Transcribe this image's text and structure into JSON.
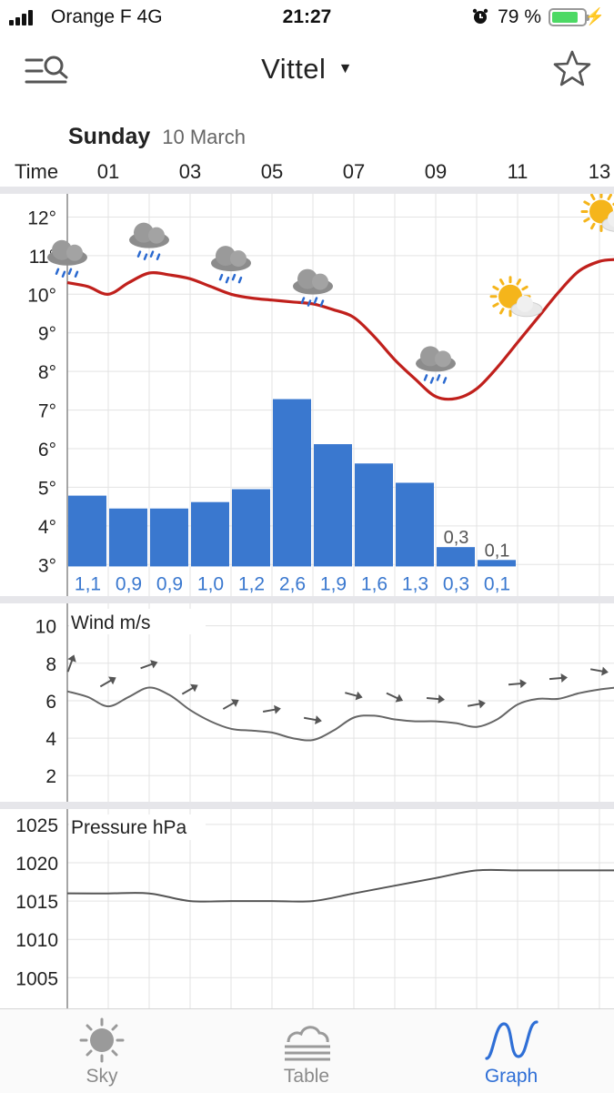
{
  "status_bar": {
    "carrier": "Orange F   4G",
    "time": "21:27",
    "battery": "79 %",
    "battery_level": 0.79
  },
  "nav": {
    "title": "Vittel",
    "menu_icon": "search-list-icon",
    "favorite_icon": "star-icon"
  },
  "day_header": {
    "day": "Sunday",
    "date": "10 March"
  },
  "time_axis": {
    "label": "Time",
    "ticks": [
      "01",
      "03",
      "05",
      "07",
      "09",
      "11",
      "13"
    ]
  },
  "chart_data": [
    {
      "type": "line",
      "name": "temperature",
      "x": [
        0.0,
        0.5,
        1.0,
        1.5,
        2.0,
        2.5,
        3.0,
        3.5,
        4.0,
        4.5,
        5.0,
        5.5,
        6.0,
        6.5,
        7.0,
        7.5,
        8.0,
        8.5,
        9.0,
        9.5,
        10.0,
        10.5,
        11.0,
        11.5,
        12.0,
        12.5,
        13.0,
        13.4
      ],
      "values": [
        10.3,
        10.2,
        10.0,
        10.3,
        10.55,
        10.5,
        10.4,
        10.2,
        10.0,
        9.9,
        9.85,
        9.8,
        9.75,
        9.6,
        9.4,
        8.9,
        8.3,
        7.8,
        7.35,
        7.3,
        7.55,
        8.1,
        8.75,
        9.4,
        10.05,
        10.6,
        10.85,
        10.9
      ],
      "ylim": [
        2.7,
        12.6
      ],
      "yticks": [
        "12°",
        "11°",
        "10°",
        "9°",
        "8°",
        "7°",
        "6°",
        "5°",
        "4°",
        "3°"
      ],
      "ytick_values": [
        12,
        11,
        10,
        9,
        8,
        7,
        6,
        5,
        4,
        3
      ],
      "color": "#c0201c"
    },
    {
      "type": "bar",
      "name": "precipitation",
      "x": [
        0,
        1,
        2,
        3,
        4,
        5,
        6,
        7,
        8,
        9,
        10
      ],
      "values": [
        1.1,
        0.9,
        0.9,
        1.0,
        1.2,
        2.6,
        1.9,
        1.6,
        1.3,
        0.3,
        0.1
      ],
      "labels": [
        "1,1",
        "0,9",
        "0,9",
        "1,0",
        "1,2",
        "2,6",
        "1,9",
        "1,6",
        "1,3",
        "0,3",
        "0,1"
      ],
      "top_labels": [
        "0,3",
        "0,1"
      ],
      "color": "#3a78cf",
      "label_color": "#3a78cf"
    },
    {
      "type": "line",
      "name": "wind",
      "title": "Wind m/s",
      "x": [
        0.0,
        0.5,
        1.0,
        1.5,
        2.0,
        2.5,
        3.0,
        3.5,
        4.0,
        4.5,
        5.0,
        5.5,
        6.0,
        6.5,
        7.0,
        7.5,
        8.0,
        8.5,
        9.0,
        9.5,
        10.0,
        10.5,
        11.0,
        11.5,
        12.0,
        12.5,
        13.0,
        13.4
      ],
      "values": [
        6.5,
        6.2,
        5.7,
        6.2,
        6.7,
        6.3,
        5.5,
        4.9,
        4.5,
        4.4,
        4.3,
        4.0,
        3.9,
        4.4,
        5.1,
        5.2,
        5.0,
        4.9,
        4.9,
        4.8,
        4.6,
        5.0,
        5.8,
        6.1,
        6.1,
        6.4,
        6.6,
        6.7
      ],
      "ylim": [
        0.6,
        11.2
      ],
      "yticks": [
        "10",
        "8",
        "6",
        "4",
        "2"
      ],
      "ytick_values": [
        10,
        8,
        6,
        4,
        2
      ],
      "color": "#666666",
      "arrows": {
        "x": [
          0,
          1,
          2,
          3,
          4,
          5,
          6,
          7,
          8,
          9,
          10,
          11,
          12,
          13
        ],
        "values": [
          8.0,
          7.0,
          7.9,
          6.6,
          5.8,
          5.5,
          5.0,
          6.3,
          6.2,
          6.1,
          5.8,
          6.9,
          7.2,
          7.6
        ],
        "direction_deg": [
          -70,
          -30,
          -20,
          -30,
          -30,
          -10,
          10,
          15,
          25,
          5,
          -10,
          -5,
          -5,
          10
        ]
      }
    },
    {
      "type": "line",
      "name": "pressure",
      "title": "Pressure hPa",
      "x": [
        0,
        1,
        2,
        3,
        4,
        5,
        6,
        7,
        8,
        9,
        10,
        11,
        12,
        13,
        13.4
      ],
      "values": [
        1016,
        1016,
        1016,
        1015,
        1015,
        1015,
        1015,
        1016,
        1017,
        1018,
        1019,
        1019,
        1019,
        1019,
        1019
      ],
      "ylim": [
        1001,
        1027
      ],
      "yticks": [
        "1025",
        "1020",
        "1015",
        "1010",
        "1005"
      ],
      "ytick_values": [
        1025,
        1020,
        1015,
        1010,
        1005
      ],
      "color": "#555555"
    }
  ],
  "weather_icons": [
    {
      "hour": 0,
      "temp": 11.05,
      "icon": "rain-cloud-icon"
    },
    {
      "hour": 2,
      "temp": 11.5,
      "icon": "rain-cloud-icon"
    },
    {
      "hour": 4,
      "temp": 10.9,
      "icon": "rain-cloud-icon"
    },
    {
      "hour": 6,
      "temp": 10.3,
      "icon": "rain-cloud-icon"
    },
    {
      "hour": 9,
      "temp": 8.3,
      "icon": "rain-cloud-icon"
    },
    {
      "hour": 11,
      "temp": 9.8,
      "icon": "partly-sunny-icon"
    },
    {
      "hour": 13,
      "temp": 12.0,
      "icon": "partly-sunny-icon"
    }
  ],
  "tabs": [
    {
      "label": "Sky",
      "icon": "sun-icon",
      "active": false
    },
    {
      "label": "Table",
      "icon": "fog-cloud-icon",
      "active": false
    },
    {
      "label": "Graph",
      "icon": "wave-graph-icon",
      "active": true
    }
  ],
  "colors": {
    "accent": "#2f6fd6",
    "temp_line": "#c0201c",
    "bar": "#3a78cf",
    "grid": "#e3e3e3"
  }
}
